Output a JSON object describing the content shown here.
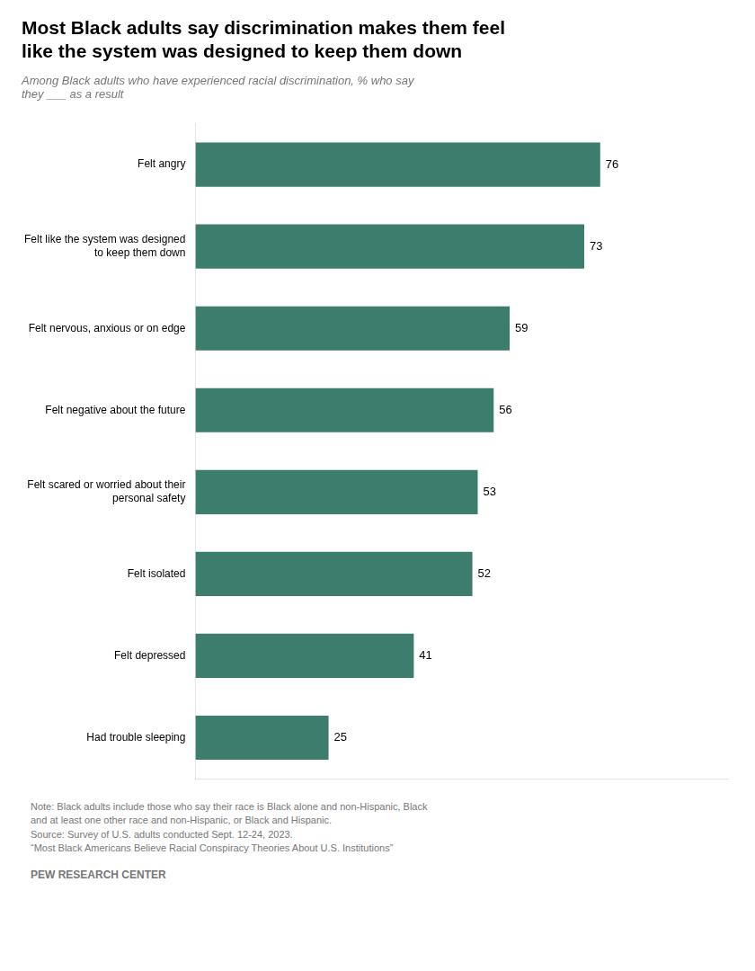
{
  "chart_data": {
    "type": "bar",
    "orientation": "horizontal",
    "title": "Most Black adults say discrimination makes them feel\nlike the system was designed to keep them down",
    "subtitle": "Among Black adults who have experienced racial discrimination, % who say\nthey ___ as a result",
    "categories": [
      "Felt angry",
      "Felt like the system was designed\nto keep them down",
      "Felt nervous, anxious or on edge",
      "Felt negative about the future",
      "Felt scared or worried about their\npersonal safety",
      "Felt isolated",
      "Felt depressed",
      "Had trouble sleeping"
    ],
    "values": [
      76,
      73,
      59,
      56,
      53,
      52,
      41,
      25
    ],
    "color": "#3d7d6e",
    "xlim": [
      0,
      100
    ],
    "grid": false,
    "data_labels": true,
    "tick_labels": "y",
    "note": "Note: Black adults include those who say their race is Black alone and non-Hispanic, Black\nand at least one other race and non-Hispanic, or Black and Hispanic.\nSource: Survey of U.S. adults conducted Sept. 12-24, 2023.\n“Most Black Americans Believe Racial Conspiracy Theories About U.S. Institutions”",
    "source": "PEW RESEARCH CENTER"
  }
}
